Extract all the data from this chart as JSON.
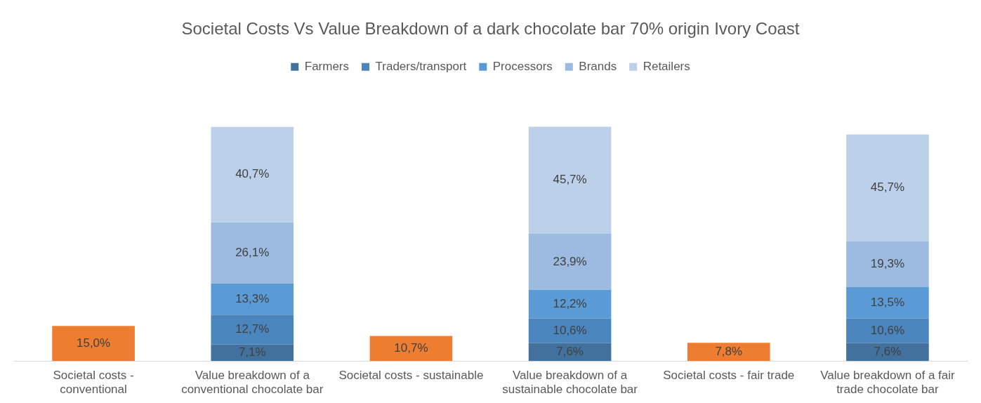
{
  "chart_data": {
    "type": "bar",
    "title": "Societal Costs Vs Value Breakdown of a dark chocolate bar 70% origin Ivory Coast",
    "categories": [
      "Societal costs - conventional",
      "Value breakdown of a conventional chocolate bar",
      "Societal costs - sustainable",
      "Value breakdown of a sustainable chocolate bar",
      "Societal costs - fair trade",
      "Value breakdown of a fair trade chocolate bar"
    ],
    "stacked": true,
    "legend": "top",
    "series": [
      {
        "color": "#ed7d31",
        "values": [
          15.0,
          null,
          10.7,
          null,
          7.8,
          null
        ],
        "value_labels": [
          "15,0%",
          null,
          "10,7%",
          null,
          "7,8%",
          null
        ]
      },
      {
        "name": "Farmers",
        "color": "#41719c",
        "values": [
          null,
          7.1,
          null,
          7.6,
          null,
          7.6
        ],
        "value_labels": [
          null,
          "7,1%",
          null,
          "7,6%",
          null,
          "7,6%"
        ]
      },
      {
        "name": "Traders/transport",
        "color": "#4a86bd",
        "values": [
          null,
          12.7,
          null,
          10.6,
          null,
          10.6
        ],
        "value_labels": [
          null,
          "12,7%",
          null,
          "10,6%",
          null,
          "10,6%"
        ]
      },
      {
        "name": "Processors",
        "color": "#5b9bd5",
        "values": [
          null,
          13.3,
          null,
          12.2,
          null,
          13.5
        ],
        "value_labels": [
          null,
          "13,3%",
          null,
          "12,2%",
          null,
          "13,5%"
        ]
      },
      {
        "name": "Brands",
        "color": "#9dbbe0",
        "values": [
          null,
          26.1,
          null,
          23.9,
          null,
          19.3
        ],
        "value_labels": [
          null,
          "26,1%",
          null,
          "23,9%",
          null,
          "19,3%"
        ]
      },
      {
        "name": "Retailers",
        "color": "#bdd0ea",
        "values": [
          null,
          40.7,
          null,
          45.7,
          null,
          45.7
        ],
        "value_labels": [
          null,
          "40,7%",
          null,
          "45,7%",
          null,
          "45,7%"
        ]
      }
    ]
  }
}
